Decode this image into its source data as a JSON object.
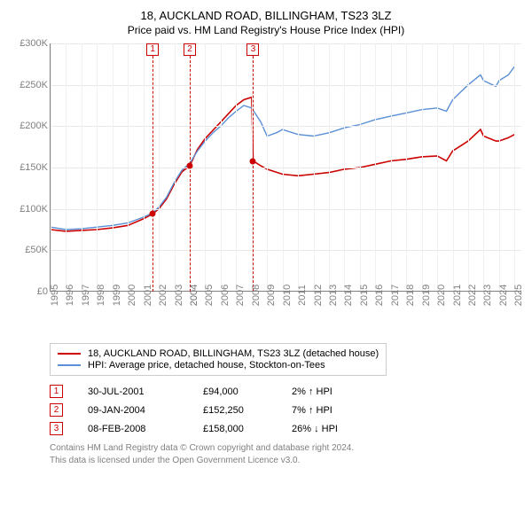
{
  "title": "18, AUCKLAND ROAD, BILLINGHAM, TS23 3LZ",
  "subtitle": "Price paid vs. HM Land Registry's House Price Index (HPI)",
  "chart": {
    "type": "line",
    "background_color": "#ffffff",
    "grid_color": "#e8e8e8",
    "axis_color": "#808080",
    "axis_fontsize": 11,
    "ylim": [
      0,
      300000
    ],
    "ytick_step": 50000,
    "yticks": [
      "£0",
      "£50K",
      "£100K",
      "£150K",
      "£200K",
      "£250K",
      "£300K"
    ],
    "xlim": [
      1995,
      2025.5
    ],
    "xticks": [
      1995,
      1996,
      1997,
      1998,
      1999,
      2000,
      2001,
      2002,
      2003,
      2004,
      2004,
      2005,
      2006,
      2007,
      2008,
      2009,
      2010,
      2011,
      2012,
      2013,
      2014,
      2015,
      2016,
      2017,
      2018,
      2019,
      2020,
      2021,
      2022,
      2023,
      2024,
      2025
    ],
    "series": [
      {
        "name": "property",
        "label": "18, AUCKLAND ROAD, BILLINGHAM, TS23 3LZ (detached house)",
        "color": "#cc0000",
        "line_width": 1.6,
        "data": [
          [
            1995,
            75000
          ],
          [
            1996,
            73000
          ],
          [
            1997,
            74000
          ],
          [
            1998,
            75000
          ],
          [
            1999,
            77000
          ],
          [
            2000,
            80000
          ],
          [
            2001,
            88000
          ],
          [
            2001.6,
            94000
          ],
          [
            2002,
            100000
          ],
          [
            2002.5,
            112000
          ],
          [
            2003,
            130000
          ],
          [
            2003.5,
            145000
          ],
          [
            2004,
            152000
          ],
          [
            2004.5,
            172000
          ],
          [
            2005,
            185000
          ],
          [
            2005.5,
            195000
          ],
          [
            2006,
            205000
          ],
          [
            2006.5,
            215000
          ],
          [
            2007,
            225000
          ],
          [
            2007.5,
            232000
          ],
          [
            2008,
            235000
          ],
          [
            2008.1,
            158000
          ],
          [
            2008.6,
            152000
          ],
          [
            2009,
            148000
          ],
          [
            2010,
            142000
          ],
          [
            2011,
            140000
          ],
          [
            2012,
            142000
          ],
          [
            2013,
            144000
          ],
          [
            2014,
            148000
          ],
          [
            2015,
            150000
          ],
          [
            2016,
            154000
          ],
          [
            2017,
            158000
          ],
          [
            2018,
            160000
          ],
          [
            2019,
            163000
          ],
          [
            2020,
            164000
          ],
          [
            2020.6,
            158000
          ],
          [
            2021,
            170000
          ],
          [
            2022,
            182000
          ],
          [
            2022.8,
            196000
          ],
          [
            2023,
            188000
          ],
          [
            2023.8,
            182000
          ],
          [
            2024,
            182000
          ],
          [
            2024.6,
            186000
          ],
          [
            2025,
            190000
          ]
        ]
      },
      {
        "name": "hpi",
        "label": "HPI: Average price, detached house, Stockton-on-Tees",
        "color": "#5b8fd6",
        "line_width": 1.4,
        "data": [
          [
            1995,
            78000
          ],
          [
            1996,
            75000
          ],
          [
            1997,
            76000
          ],
          [
            1998,
            78000
          ],
          [
            1999,
            80000
          ],
          [
            2000,
            83000
          ],
          [
            2001,
            90000
          ],
          [
            2001.6,
            95000
          ],
          [
            2002,
            102000
          ],
          [
            2002.5,
            114000
          ],
          [
            2003,
            132000
          ],
          [
            2003.5,
            147000
          ],
          [
            2004,
            155000
          ],
          [
            2004.5,
            170000
          ],
          [
            2005,
            182000
          ],
          [
            2005.5,
            192000
          ],
          [
            2006,
            200000
          ],
          [
            2006.5,
            210000
          ],
          [
            2007,
            218000
          ],
          [
            2007.5,
            225000
          ],
          [
            2008,
            222000
          ],
          [
            2008.6,
            205000
          ],
          [
            2009,
            188000
          ],
          [
            2009.6,
            192000
          ],
          [
            2010,
            196000
          ],
          [
            2011,
            190000
          ],
          [
            2012,
            188000
          ],
          [
            2013,
            192000
          ],
          [
            2014,
            198000
          ],
          [
            2015,
            202000
          ],
          [
            2016,
            208000
          ],
          [
            2017,
            212000
          ],
          [
            2018,
            216000
          ],
          [
            2019,
            220000
          ],
          [
            2020,
            222000
          ],
          [
            2020.6,
            218000
          ],
          [
            2021,
            232000
          ],
          [
            2022,
            250000
          ],
          [
            2022.8,
            262000
          ],
          [
            2023,
            255000
          ],
          [
            2023.8,
            248000
          ],
          [
            2024,
            255000
          ],
          [
            2024.6,
            262000
          ],
          [
            2025,
            272000
          ]
        ]
      }
    ],
    "event_markers": [
      {
        "n": "1",
        "x": 2001.6,
        "y": 94000,
        "box_top": 0,
        "color": "#cc0000"
      },
      {
        "n": "2",
        "x": 2004.0,
        "y": 152250,
        "box_top": 0,
        "color": "#cc0000"
      },
      {
        "n": "3",
        "x": 2008.1,
        "y": 158000,
        "box_top": 0,
        "color": "#cc0000"
      }
    ]
  },
  "legend": {
    "border_color": "#cccccc",
    "items": [
      {
        "color": "#cc0000",
        "label": "18, AUCKLAND ROAD, BILLINGHAM, TS23 3LZ (detached house)"
      },
      {
        "color": "#5b8fd6",
        "label": "HPI: Average price, detached house, Stockton-on-Tees"
      }
    ]
  },
  "events": [
    {
      "n": "1",
      "date": "30-JUL-2001",
      "price": "£94,000",
      "delta": "2% ↑ HPI"
    },
    {
      "n": "2",
      "date": "09-JAN-2004",
      "price": "£152,250",
      "delta": "7% ↑ HPI"
    },
    {
      "n": "3",
      "date": "08-FEB-2008",
      "price": "£158,000",
      "delta": "26% ↓ HPI"
    }
  ],
  "attribution": {
    "line1": "Contains HM Land Registry data © Crown copyright and database right 2024.",
    "line2": "This data is licensed under the Open Government Licence v3.0."
  }
}
